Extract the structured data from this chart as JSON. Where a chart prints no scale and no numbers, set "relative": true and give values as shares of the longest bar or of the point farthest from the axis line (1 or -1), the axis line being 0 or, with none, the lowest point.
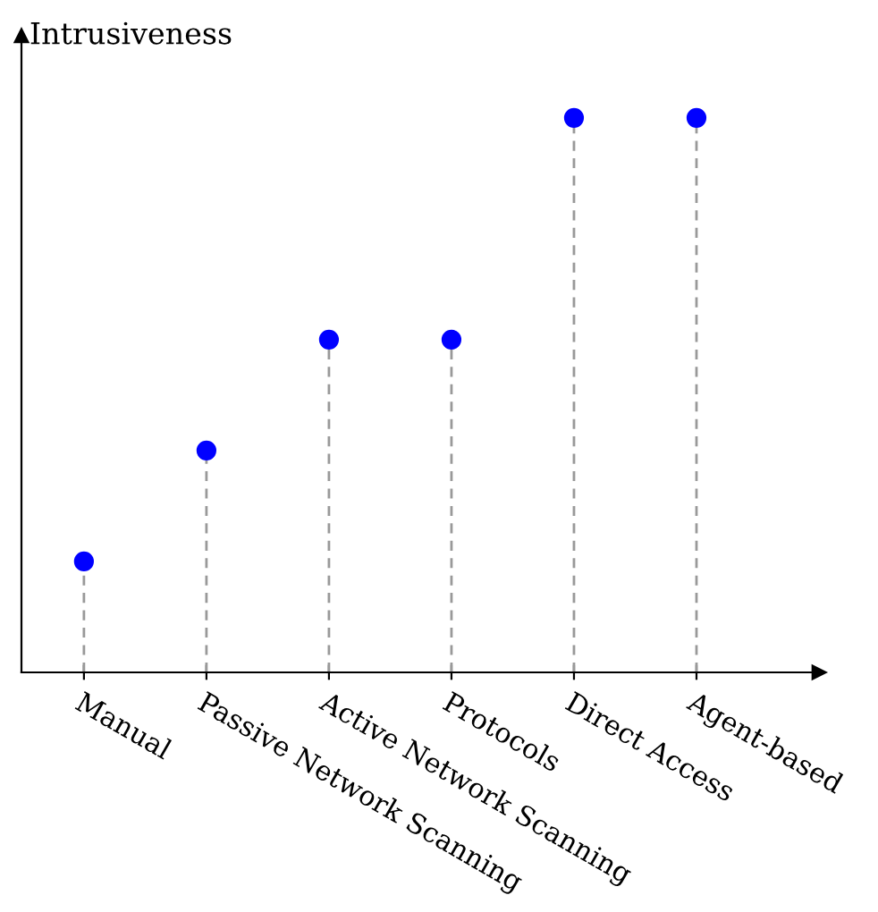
{
  "chart_data": {
    "type": "lollipop",
    "ylabel": "Intrusiveness",
    "relative": true,
    "categories": [
      "Manual",
      "Passive Network Scanning",
      "Active Network Scanning",
      "Protocols",
      "Direct Access",
      "Agent-based"
    ],
    "series": [
      {
        "color": "#0000ff",
        "values": [
          0.2,
          0.4,
          0.6,
          0.6,
          1,
          1
        ]
      }
    ],
    "marker": "circle",
    "line_style": "dashed",
    "legend": false
  }
}
